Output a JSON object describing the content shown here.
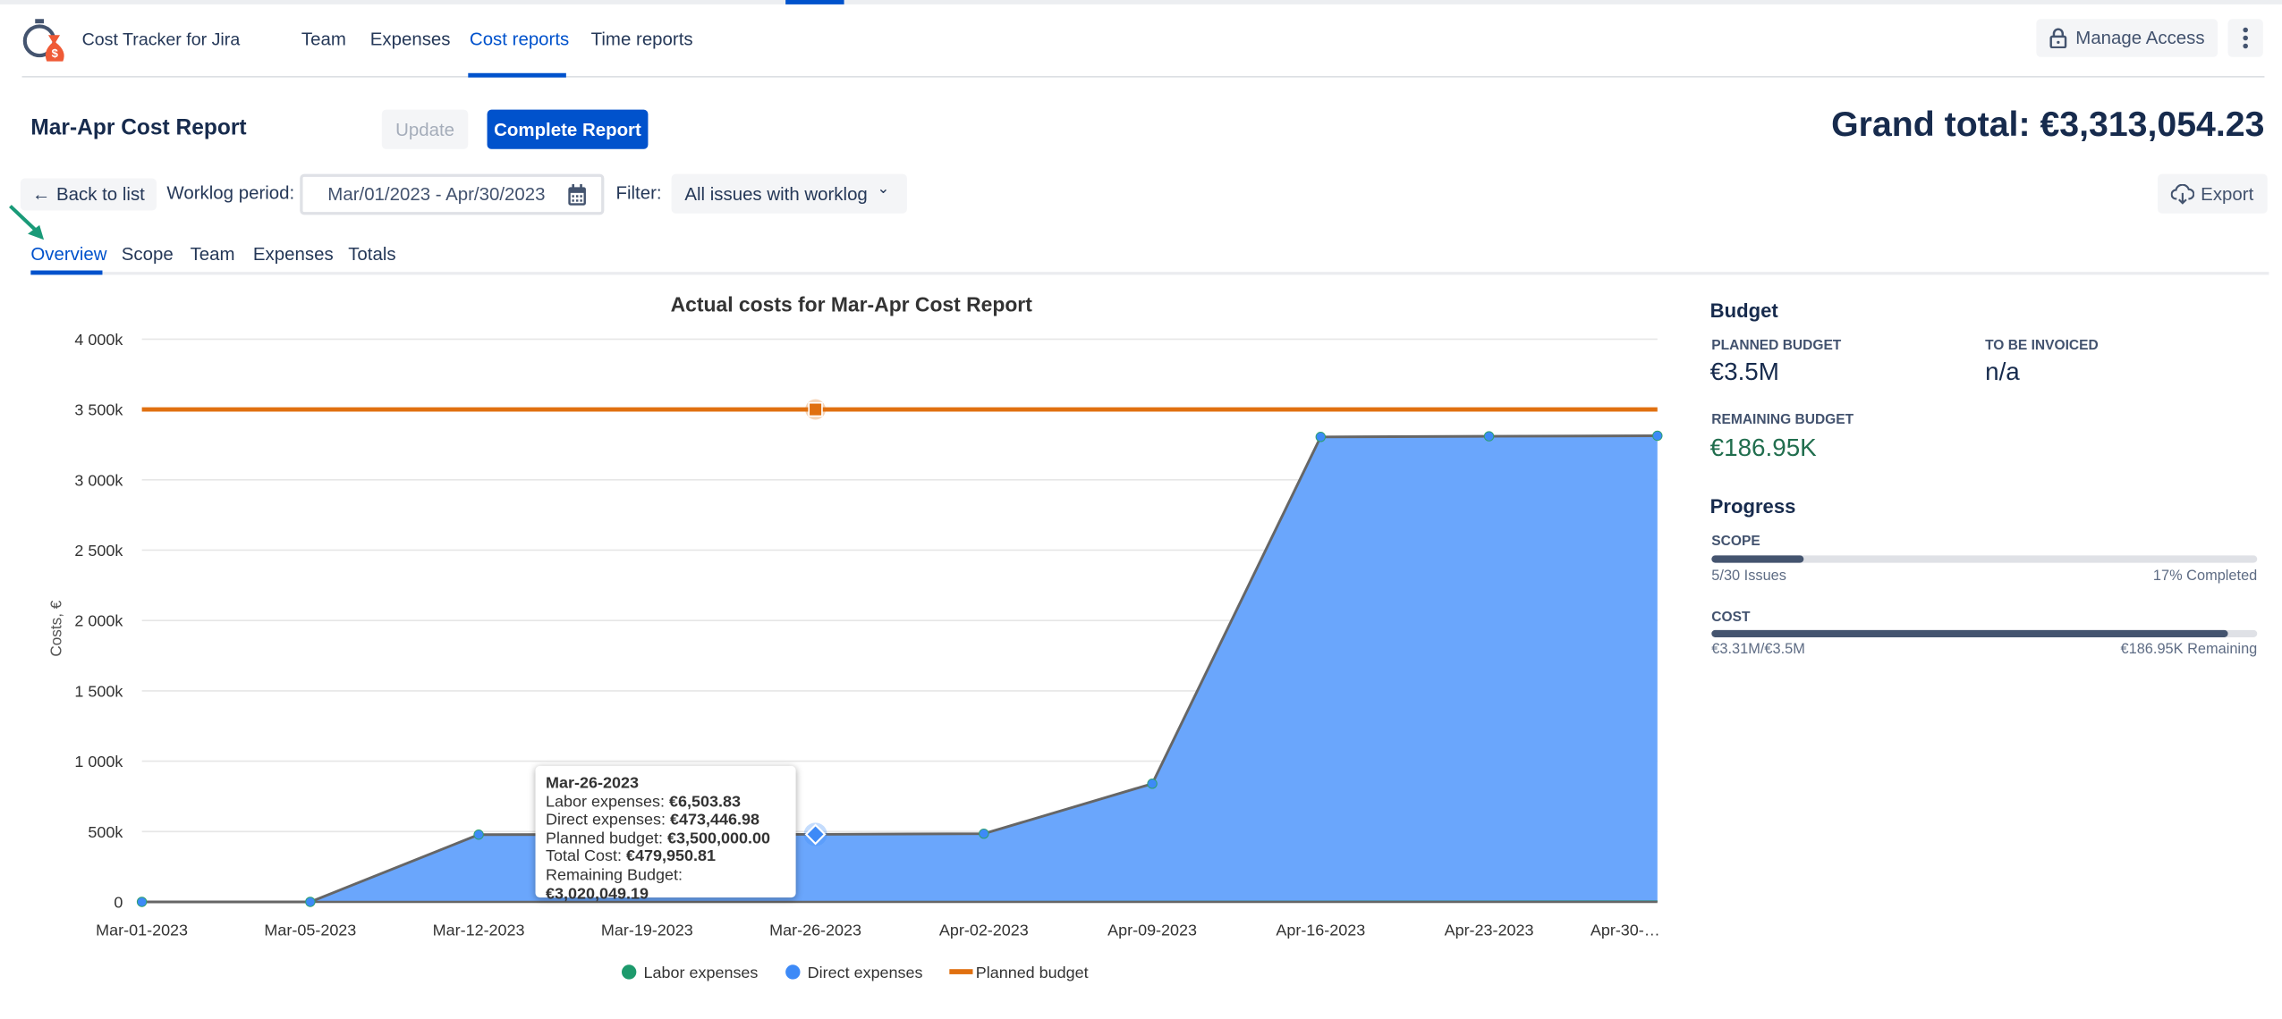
{
  "app": {
    "name": "Cost Tracker for Jira",
    "logo_icon": "stopwatch-moneybag-logo"
  },
  "nav": {
    "items": [
      {
        "label": "Team"
      },
      {
        "label": "Expenses"
      },
      {
        "label": "Cost reports",
        "active": true
      },
      {
        "label": "Time reports"
      }
    ],
    "manage_access": "Manage Access"
  },
  "report": {
    "title": "Mar-Apr Cost Report",
    "update": "Update",
    "complete": "Complete Report",
    "grand_total": "Grand total: €3,313,054.23",
    "back": "Back to list",
    "worklog_label": "Worklog period:",
    "worklog_value": "Mar/01/2023 - Apr/30/2023",
    "filter_label": "Filter:",
    "filter_value": "All issues with worklog",
    "export": "Export"
  },
  "tabs": [
    {
      "label": "Overview",
      "active": true
    },
    {
      "label": "Scope"
    },
    {
      "label": "Team"
    },
    {
      "label": "Expenses"
    },
    {
      "label": "Totals"
    }
  ],
  "budget": {
    "heading": "Budget",
    "planned_label": "PLANNED BUDGET",
    "planned_value": "€3.5M",
    "invoice_label": "TO BE INVOICED",
    "invoice_value": "n/a",
    "remaining_label": "REMAINING BUDGET",
    "remaining_value": "€186.95K",
    "remaining_color": "#216e4e"
  },
  "progress": {
    "heading": "Progress",
    "scope": {
      "label": "SCOPE",
      "left": "5/30 Issues",
      "right": "17% Completed",
      "percent": 17
    },
    "cost": {
      "label": "COST",
      "left": "€3.31M/€3.5M",
      "right": "€186.95K Remaining",
      "percent": 94.7
    }
  },
  "tooltip": {
    "date": "Mar-26-2023",
    "rows": [
      {
        "k": "Labor expenses: ",
        "v": "€6,503.83"
      },
      {
        "k": "Direct expenses: ",
        "v": "€473,446.98"
      },
      {
        "k": "Planned budget: ",
        "v": "€3,500,000.00"
      },
      {
        "k": "Total Cost: ",
        "v": "€479,950.81"
      },
      {
        "k": "Remaining Budget: ",
        "v": "€3,020,049.19"
      }
    ]
  },
  "chart_data": {
    "type": "area",
    "title": "Actual costs for Mar-Apr Cost Report",
    "xlabel": "",
    "ylabel": "Costs, €",
    "categories": [
      "Mar-01-2023",
      "Mar-05-2023",
      "Mar-12-2023",
      "Mar-19-2023",
      "Mar-26-2023",
      "Apr-02-2023",
      "Apr-09-2023",
      "Apr-16-2023",
      "Apr-23-2023",
      "Apr-30-…"
    ],
    "ylim": [
      0,
      4000000
    ],
    "yticks": [
      {
        "v": 0,
        "label": "0"
      },
      {
        "v": 500000,
        "label": "500k"
      },
      {
        "v": 1000000,
        "label": "1 000k"
      },
      {
        "v": 1500000,
        "label": "1 500k"
      },
      {
        "v": 2000000,
        "label": "2 000k"
      },
      {
        "v": 2500000,
        "label": "2 500k"
      },
      {
        "v": 3000000,
        "label": "3 000k"
      },
      {
        "v": 3500000,
        "label": "3 500k"
      },
      {
        "v": 4000000,
        "label": "4 000k"
      }
    ],
    "grid": true,
    "stacked": true,
    "legend_position": "bottom",
    "series": [
      {
        "name": "Labor expenses",
        "color": "#1d9a6c",
        "values": [
          0,
          0,
          6000,
          6300,
          6503.83,
          6800,
          8000,
          9000,
          9500,
          10000
        ]
      },
      {
        "name": "Direct expenses",
        "color": "#3d8af7",
        "values": [
          0,
          0,
          472000,
          473000,
          473446.98,
          478000,
          832000,
          3296000,
          3300000,
          3303054.23
        ]
      },
      {
        "name": "Planned budget",
        "color": "#e07010",
        "values": [
          3500000,
          3500000,
          3500000,
          3500000,
          3500000,
          3500000,
          3500000,
          3500000,
          3500000,
          3500000
        ]
      }
    ],
    "hover_index": 4
  }
}
